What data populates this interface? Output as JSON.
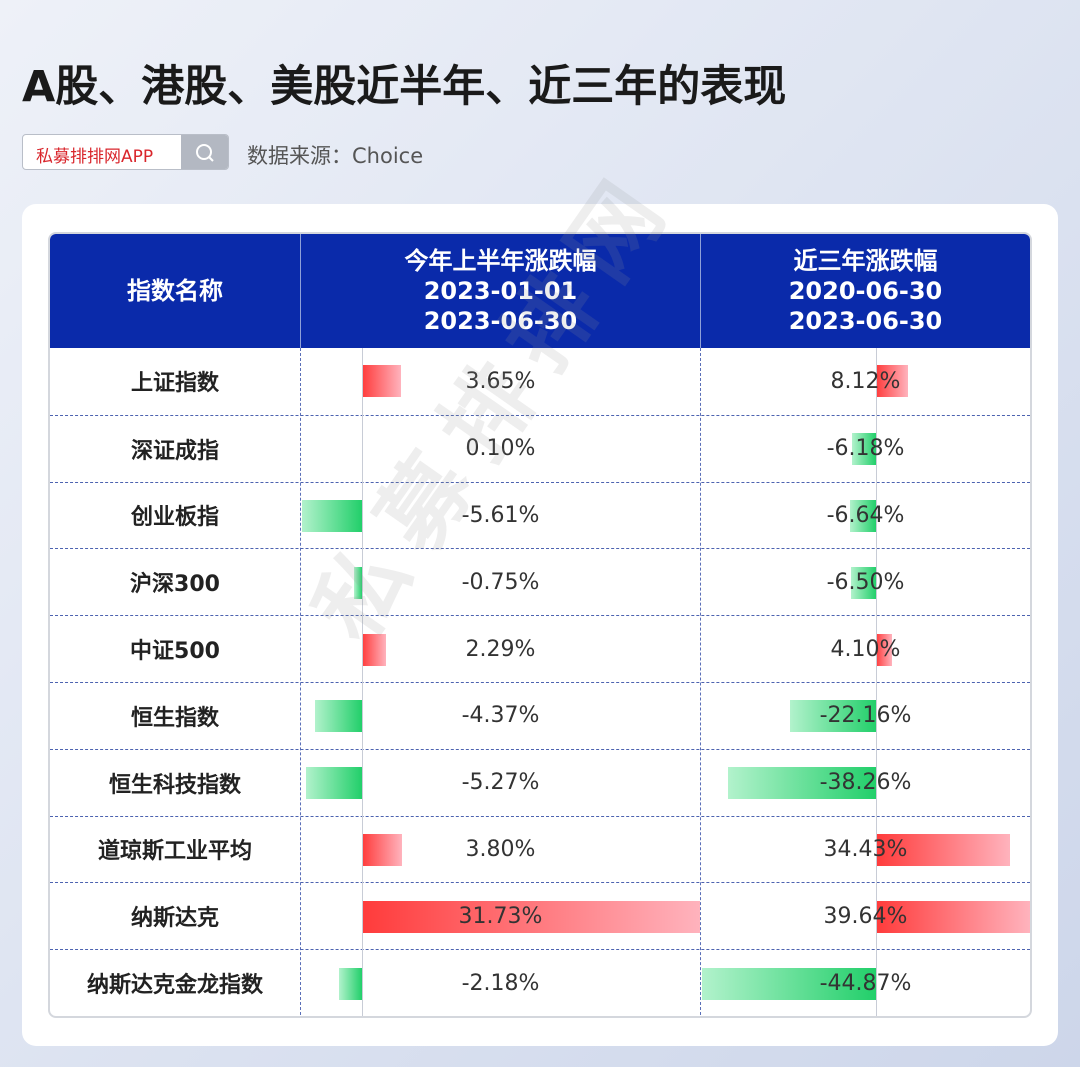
{
  "header": {
    "title": "A股、港股、美股近半年、近三年的表现",
    "badge": "私募排排网APP",
    "source": "数据来源：Choice",
    "watermark": "私募排排网"
  },
  "table": {
    "columns": [
      {
        "name": "指数名称"
      },
      {
        "name": "今年上半年涨跌幅",
        "start": "2023-01-01",
        "end": "2023-06-30"
      },
      {
        "name": "近三年涨跌幅",
        "start": "2020-06-30",
        "end": "2023-06-30"
      }
    ],
    "categories": [
      "上证指数",
      "深证成指",
      "创业板指",
      "沪深300",
      "中证500",
      "恒生指数",
      "恒生科技指数",
      "道琼斯工业平均",
      "纳斯达克",
      "纳斯达克金龙指数"
    ],
    "series": [
      {
        "values": [
          3.65,
          0.1,
          -5.61,
          -0.75,
          2.29,
          -4.37,
          -5.27,
          3.8,
          31.73,
          -2.18
        ],
        "value_labels": [
          "3.65%",
          "0.10%",
          "-5.61%",
          "-0.75%",
          "2.29%",
          "-4.37%",
          "-5.27%",
          "3.80%",
          "31.73%",
          "-2.18%"
        ]
      },
      {
        "values": [
          8.12,
          -6.18,
          -6.64,
          -6.5,
          4.1,
          -22.16,
          -38.26,
          34.43,
          39.64,
          -44.87
        ],
        "value_labels": [
          "8.12%",
          "-6.18%",
          "-6.64%",
          "-6.50%",
          "4.10%",
          "-22.16%",
          "-38.26%",
          "34.43%",
          "39.64%",
          "-44.87%"
        ]
      }
    ]
  }
}
